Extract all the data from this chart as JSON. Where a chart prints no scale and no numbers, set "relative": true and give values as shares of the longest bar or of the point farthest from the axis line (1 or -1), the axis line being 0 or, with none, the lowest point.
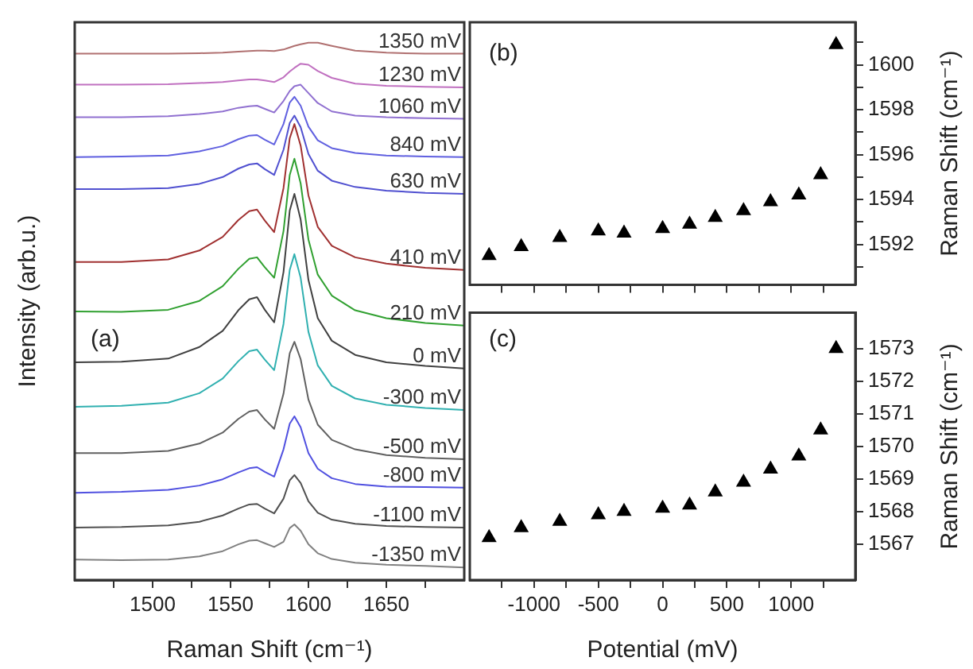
{
  "chart_data": [
    {
      "type": "line",
      "relative": true,
      "xlabel": "Raman Shift (cm⁻¹)",
      "ylabel": "Intensity (arb.u.)",
      "annotations": [
        "(a)"
      ],
      "marker": "none",
      "xlim": [
        1450,
        1700
      ],
      "xticks": [
        {
          "value": 1475,
          "label": null
        },
        1500,
        {
          "value": 1525,
          "label": null
        },
        1550,
        {
          "value": 1575,
          "label": null
        },
        1600,
        {
          "value": 1625,
          "label": null
        },
        1650,
        {
          "value": 1675,
          "label": null
        }
      ],
      "x": [
        1450,
        1480,
        1510,
        1530,
        1545,
        1555,
        1562,
        1567,
        1572,
        1578,
        1584,
        1588,
        1591,
        1595,
        1600,
        1606,
        1615,
        1630,
        1650,
        1675,
        1700
      ],
      "series": [
        {
          "name": "1350 mV",
          "color": "#b07070",
          "values": [
            0.979,
            0.979,
            0.979,
            0.98,
            0.981,
            0.983,
            0.984,
            0.985,
            0.985,
            0.984,
            0.987,
            0.991,
            0.994,
            0.997,
            1.0,
            1.0,
            0.994,
            0.985,
            0.981,
            0.979,
            0.979
          ]
        },
        {
          "name": "1230 mV",
          "color": "#c070c0",
          "values": [
            0.92,
            0.92,
            0.921,
            0.923,
            0.925,
            0.928,
            0.93,
            0.93,
            0.928,
            0.925,
            0.934,
            0.945,
            0.952,
            0.96,
            0.958,
            0.946,
            0.933,
            0.922,
            0.918,
            0.916,
            0.915
          ]
        },
        {
          "name": "1060 mV",
          "color": "#9070d0",
          "values": [
            0.858,
            0.858,
            0.86,
            0.864,
            0.869,
            0.876,
            0.879,
            0.88,
            0.874,
            0.867,
            0.889,
            0.908,
            0.917,
            0.92,
            0.904,
            0.885,
            0.869,
            0.861,
            0.858,
            0.856,
            0.855
          ]
        },
        {
          "name": "840 mV",
          "color": "#6060e0",
          "values": [
            0.782,
            0.783,
            0.785,
            0.793,
            0.803,
            0.816,
            0.823,
            0.824,
            0.815,
            0.806,
            0.845,
            0.886,
            0.897,
            0.88,
            0.84,
            0.814,
            0.799,
            0.79,
            0.785,
            0.783,
            0.782
          ]
        },
        {
          "name": "630 mV",
          "color": "#5050d0",
          "values": [
            0.721,
            0.721,
            0.723,
            0.731,
            0.744,
            0.76,
            0.768,
            0.77,
            0.759,
            0.748,
            0.796,
            0.847,
            0.861,
            0.839,
            0.788,
            0.756,
            0.737,
            0.725,
            0.718,
            0.714,
            0.712
          ]
        },
        {
          "name": "410 mV",
          "color": "#a03030",
          "values": [
            0.582,
            0.582,
            0.587,
            0.604,
            0.63,
            0.662,
            0.679,
            0.682,
            0.661,
            0.639,
            0.723,
            0.818,
            0.845,
            0.804,
            0.709,
            0.649,
            0.613,
            0.591,
            0.579,
            0.571,
            0.567
          ]
        },
        {
          "name": "210 mV",
          "color": "#30a030",
          "values": [
            0.488,
            0.487,
            0.491,
            0.508,
            0.536,
            0.569,
            0.588,
            0.591,
            0.572,
            0.552,
            0.641,
            0.748,
            0.779,
            0.732,
            0.625,
            0.558,
            0.518,
            0.49,
            0.475,
            0.466,
            0.461
          ]
        },
        {
          "name": "0 mV",
          "color": "#404040",
          "values": [
            0.391,
            0.392,
            0.398,
            0.42,
            0.451,
            0.49,
            0.511,
            0.515,
            0.491,
            0.467,
            0.563,
            0.68,
            0.712,
            0.663,
            0.548,
            0.475,
            0.432,
            0.405,
            0.391,
            0.384,
            0.379
          ]
        },
        {
          "name": "-300 mV",
          "color": "#30b0b0",
          "values": [
            0.306,
            0.308,
            0.314,
            0.332,
            0.36,
            0.393,
            0.412,
            0.415,
            0.396,
            0.376,
            0.464,
            0.567,
            0.597,
            0.552,
            0.449,
            0.385,
            0.346,
            0.322,
            0.31,
            0.304,
            0.3
          ]
        },
        {
          "name": "-500 mV",
          "color": "#606060",
          "values": [
            0.218,
            0.218,
            0.222,
            0.236,
            0.257,
            0.283,
            0.297,
            0.3,
            0.282,
            0.264,
            0.331,
            0.408,
            0.43,
            0.397,
            0.32,
            0.272,
            0.243,
            0.225,
            0.214,
            0.209,
            0.206
          ]
        },
        {
          "name": "-800 mV",
          "color": "#5050e0",
          "values": [
            0.142,
            0.144,
            0.148,
            0.156,
            0.168,
            0.181,
            0.189,
            0.191,
            0.182,
            0.173,
            0.225,
            0.274,
            0.288,
            0.267,
            0.218,
            0.188,
            0.17,
            0.159,
            0.154,
            0.153,
            0.152
          ]
        },
        {
          "name": "-1100 mV",
          "color": "#505050",
          "values": [
            0.076,
            0.077,
            0.08,
            0.087,
            0.099,
            0.112,
            0.12,
            0.121,
            0.112,
            0.103,
            0.131,
            0.166,
            0.176,
            0.161,
            0.126,
            0.104,
            0.091,
            0.083,
            0.079,
            0.077,
            0.076
          ]
        },
        {
          "name": "-1350 mV",
          "color": "#808080",
          "values": [
            0.015,
            0.014,
            0.015,
            0.021,
            0.031,
            0.044,
            0.051,
            0.052,
            0.046,
            0.039,
            0.049,
            0.075,
            0.082,
            0.07,
            0.044,
            0.027,
            0.016,
            0.009,
            0.005,
            0.003,
            0.0
          ]
        }
      ]
    },
    {
      "type": "scatter",
      "ylabel": "Raman Shift (cm⁻¹)",
      "annotations": [
        "(b)"
      ],
      "marker": "triangle",
      "tick_labels": "y",
      "xlim": [
        -1500,
        1500
      ],
      "ylim": [
        1590.2,
        1601.9
      ],
      "xticks": [
        {
          "value": -1250,
          "label": null
        },
        -1000,
        {
          "value": -750,
          "label": null
        },
        -500,
        {
          "value": -250,
          "label": null
        },
        0,
        {
          "value": 250,
          "label": null
        },
        500,
        {
          "value": 750,
          "label": null
        },
        1000,
        {
          "value": 1250,
          "label": null
        }
      ],
      "yticks": [
        {
          "value": 1591,
          "label": null
        },
        1592,
        {
          "value": 1593,
          "label": null
        },
        1594,
        {
          "value": 1595,
          "label": null
        },
        1596,
        {
          "value": 1597,
          "label": null
        },
        1598,
        {
          "value": 1599,
          "label": null
        },
        1600,
        {
          "value": 1601,
          "label": null
        }
      ],
      "x": [
        -1350,
        -1100,
        -800,
        -500,
        -300,
        0,
        210,
        410,
        630,
        840,
        1060,
        1230,
        1350
      ],
      "series": [
        {
          "color": "#000000",
          "values": [
            1591.5,
            1591.9,
            1592.3,
            1592.6,
            1592.5,
            1592.7,
            1592.9,
            1593.2,
            1593.5,
            1593.9,
            1594.2,
            1595.1,
            1600.9
          ]
        }
      ]
    },
    {
      "type": "scatter",
      "xlabel": "Potential (mV)",
      "ylabel": "Raman Shift (cm⁻¹)",
      "annotations": [
        "(c)"
      ],
      "marker": "triangle",
      "xlim": [
        -1500,
        1500
      ],
      "ylim": [
        1565.9,
        1574.1
      ],
      "xticks": [
        {
          "value": -1250,
          "label": null
        },
        -1000,
        {
          "value": -750,
          "label": null
        },
        -500,
        {
          "value": -250,
          "label": null
        },
        0,
        {
          "value": 250,
          "label": null
        },
        500,
        {
          "value": 750,
          "label": null
        },
        1000,
        {
          "value": 1250,
          "label": null
        }
      ],
      "yticks": [
        1567,
        1568,
        1569,
        1570,
        1571,
        1572,
        1573
      ],
      "x": [
        -1350,
        -1100,
        -800,
        -500,
        -300,
        0,
        210,
        410,
        630,
        840,
        1060,
        1230,
        1350
      ],
      "series": [
        {
          "color": "#000000",
          "values": [
            1567.2,
            1567.5,
            1567.7,
            1567.9,
            1568.0,
            1568.1,
            1568.2,
            1568.6,
            1568.9,
            1569.3,
            1569.7,
            1570.5,
            1573.0
          ]
        }
      ]
    }
  ]
}
